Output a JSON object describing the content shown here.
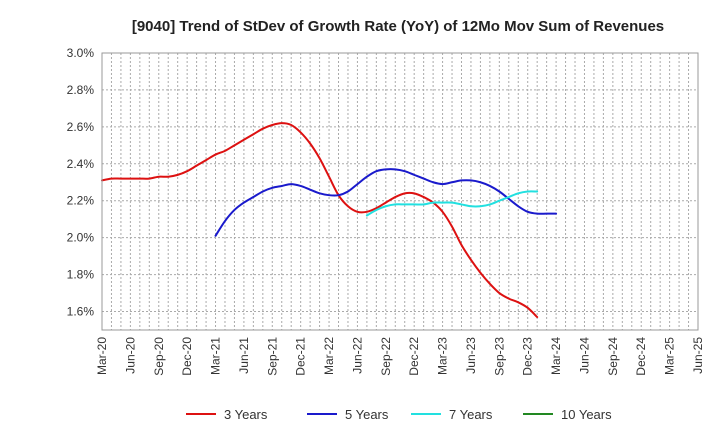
{
  "chart_data": {
    "type": "line",
    "title": "[9040]  Trend of StDev of Growth Rate (YoY) of 12Mo Mov Sum of Revenues",
    "xlabel": "",
    "ylabel": "",
    "ylim": [
      0.015,
      0.03
    ],
    "y_ticks": [
      0.016,
      0.018,
      0.02,
      0.022,
      0.024,
      0.026,
      0.028,
      0.03
    ],
    "y_tick_labels": [
      "1.6%",
      "1.8%",
      "2.0%",
      "2.2%",
      "2.4%",
      "2.6%",
      "2.8%",
      "3.0%"
    ],
    "x_tick_labels": [
      "Mar-20",
      "Jun-20",
      "Sep-20",
      "Dec-20",
      "Mar-21",
      "Jun-21",
      "Sep-21",
      "Dec-21",
      "Mar-22",
      "Jun-22",
      "Sep-22",
      "Dec-22",
      "Mar-23",
      "Jun-23",
      "Sep-23",
      "Dec-23",
      "Mar-24",
      "Jun-24",
      "Sep-24",
      "Dec-24",
      "Mar-25",
      "Jun-25"
    ],
    "grid": true,
    "legend_position": "bottom",
    "series": [
      {
        "name": "3 Years",
        "color": "#dd1111",
        "start_index": 0,
        "values": [
          0.0231,
          0.0232,
          0.0232,
          0.0232,
          0.0232,
          0.0232,
          0.0233,
          0.0233,
          0.0234,
          0.0236,
          0.0239,
          0.0242,
          0.0245,
          0.0247,
          0.025,
          0.0253,
          0.0256,
          0.0259,
          0.0261,
          0.0262,
          0.0261,
          0.0257,
          0.0251,
          0.0243,
          0.0233,
          0.0223,
          0.0217,
          0.0214,
          0.0214,
          0.0216,
          0.0219,
          0.0222,
          0.0224,
          0.0224,
          0.0222,
          0.0219,
          0.0214,
          0.0206,
          0.0196,
          0.0188,
          0.0181,
          0.0175,
          0.017,
          0.0167,
          0.0165,
          0.0162,
          0.0157
        ]
      },
      {
        "name": "5 Years",
        "color": "#1a1acc",
        "start_index": 12,
        "values": [
          0.0201,
          0.0209,
          0.0215,
          0.0219,
          0.0222,
          0.0225,
          0.0227,
          0.0228,
          0.0229,
          0.0228,
          0.0226,
          0.0224,
          0.0223,
          0.0223,
          0.0225,
          0.0229,
          0.0233,
          0.0236,
          0.0237,
          0.0237,
          0.0236,
          0.0234,
          0.0232,
          0.023,
          0.0229,
          0.023,
          0.0231,
          0.0231,
          0.023,
          0.0228,
          0.0225,
          0.0221,
          0.0217,
          0.0214,
          0.0213,
          0.0213,
          0.0213
        ]
      },
      {
        "name": "7 Years",
        "color": "#22e0e0",
        "start_index": 28,
        "values": [
          0.0212,
          0.0215,
          0.0217,
          0.0218,
          0.0218,
          0.0218,
          0.0218,
          0.0219,
          0.0219,
          0.0219,
          0.0218,
          0.0217,
          0.0217,
          0.0218,
          0.022,
          0.0222,
          0.0224,
          0.0225,
          0.0225
        ]
      },
      {
        "name": "10 Years",
        "color": "#228822",
        "start_index": 0,
        "values": []
      }
    ]
  }
}
